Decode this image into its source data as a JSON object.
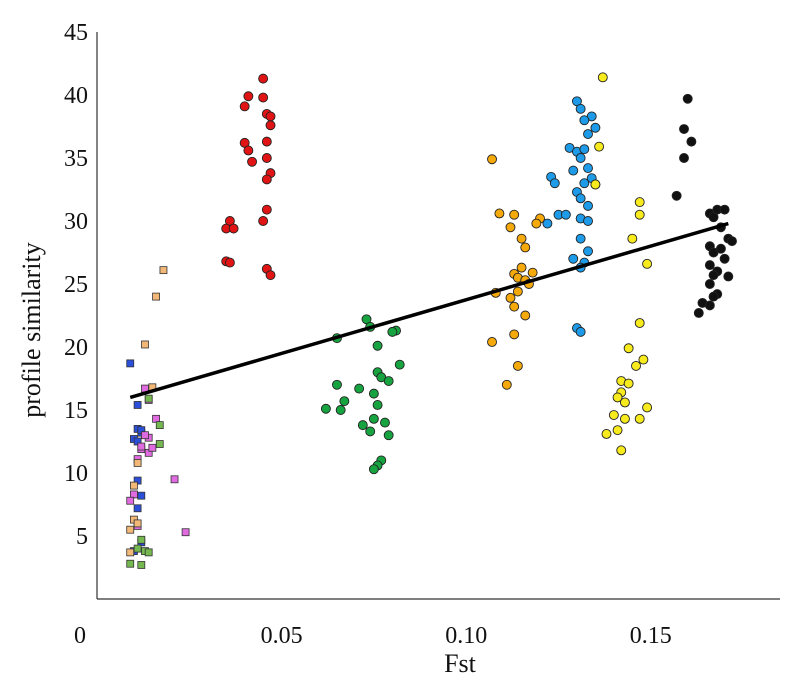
{
  "chart_data": {
    "type": "scatter",
    "title": "",
    "xlabel": "Fst",
    "ylabel": "profile similarity",
    "xlim": [
      0,
      0.185
    ],
    "ylim": [
      0,
      45
    ],
    "x_ticks": [
      "0",
      "0.05",
      "0.10",
      "0.15"
    ],
    "x_tick_values": [
      0,
      0.05,
      0.1,
      0.15
    ],
    "y_ticks": [
      "5",
      "10",
      "15",
      "20",
      "25",
      "30",
      "35",
      "40",
      "45"
    ],
    "y_tick_values": [
      5,
      10,
      15,
      20,
      25,
      30,
      35,
      40,
      45
    ],
    "grid": false,
    "legend": "none",
    "trendline": {
      "x": [
        0.009,
        0.171
      ],
      "y": [
        16.0,
        29.8
      ],
      "color": "#000000"
    },
    "series": [
      {
        "marker": "square",
        "color": "#2b4fd8",
        "points": [
          [
            0.009,
            18.7
          ],
          [
            0.011,
            15.4
          ],
          [
            0.011,
            13.5
          ],
          [
            0.012,
            13.2
          ],
          [
            0.01,
            12.7
          ],
          [
            0.011,
            9.4
          ],
          [
            0.012,
            8.2
          ],
          [
            0.011,
            7.2
          ],
          [
            0.012,
            4.5
          ],
          [
            0.01,
            3.8
          ],
          [
            0.012,
            13.4
          ],
          [
            0.011,
            12.5
          ]
        ]
      },
      {
        "marker": "square",
        "color": "#e06be0",
        "points": [
          [
            0.013,
            16.7
          ],
          [
            0.014,
            15.8
          ],
          [
            0.014,
            12.8
          ],
          [
            0.012,
            11.9
          ],
          [
            0.011,
            11.1
          ],
          [
            0.014,
            11.6
          ],
          [
            0.015,
            12.0
          ],
          [
            0.021,
            9.5
          ],
          [
            0.01,
            8.3
          ],
          [
            0.009,
            7.8
          ],
          [
            0.011,
            5.8
          ],
          [
            0.024,
            5.3
          ],
          [
            0.016,
            14.3
          ],
          [
            0.013,
            13.0
          ],
          [
            0.012,
            12.1
          ]
        ]
      },
      {
        "marker": "square",
        "color": "#f2b877",
        "points": [
          [
            0.018,
            26.1
          ],
          [
            0.016,
            24.0
          ],
          [
            0.013,
            20.2
          ],
          [
            0.015,
            16.8
          ],
          [
            0.011,
            10.8
          ],
          [
            0.01,
            9.0
          ],
          [
            0.01,
            6.3
          ],
          [
            0.011,
            6.0
          ],
          [
            0.009,
            5.5
          ],
          [
            0.009,
            3.7
          ]
        ]
      },
      {
        "marker": "square",
        "color": "#74b84f",
        "points": [
          [
            0.014,
            15.9
          ],
          [
            0.017,
            13.8
          ],
          [
            0.017,
            12.3
          ],
          [
            0.012,
            4.7
          ],
          [
            0.011,
            4.0
          ],
          [
            0.013,
            3.8
          ],
          [
            0.014,
            3.7
          ],
          [
            0.009,
            2.8
          ],
          [
            0.012,
            2.7
          ]
        ]
      },
      {
        "marker": "circle",
        "color": "#e01414",
        "points": [
          [
            0.045,
            41.3
          ],
          [
            0.041,
            39.9
          ],
          [
            0.045,
            39.8
          ],
          [
            0.04,
            39.1
          ],
          [
            0.046,
            38.5
          ],
          [
            0.047,
            38.3
          ],
          [
            0.047,
            37.6
          ],
          [
            0.04,
            36.2
          ],
          [
            0.046,
            36.3
          ],
          [
            0.041,
            35.6
          ],
          [
            0.046,
            35.0
          ],
          [
            0.042,
            34.7
          ],
          [
            0.047,
            33.8
          ],
          [
            0.046,
            33.3
          ],
          [
            0.046,
            30.9
          ],
          [
            0.045,
            30.0
          ],
          [
            0.036,
            30.0
          ],
          [
            0.035,
            29.4
          ],
          [
            0.037,
            29.4
          ],
          [
            0.035,
            26.8
          ],
          [
            0.036,
            26.7
          ],
          [
            0.046,
            26.2
          ],
          [
            0.047,
            25.7
          ]
        ]
      },
      {
        "marker": "circle",
        "color": "#17a340",
        "points": [
          [
            0.073,
            22.2
          ],
          [
            0.074,
            21.6
          ],
          [
            0.081,
            21.3
          ],
          [
            0.08,
            21.2
          ],
          [
            0.065,
            20.7
          ],
          [
            0.076,
            20.1
          ],
          [
            0.076,
            18.0
          ],
          [
            0.082,
            18.6
          ],
          [
            0.077,
            17.6
          ],
          [
            0.079,
            17.3
          ],
          [
            0.065,
            17.0
          ],
          [
            0.071,
            16.7
          ],
          [
            0.075,
            16.3
          ],
          [
            0.067,
            15.7
          ],
          [
            0.076,
            15.4
          ],
          [
            0.062,
            15.1
          ],
          [
            0.066,
            15.0
          ],
          [
            0.075,
            14.3
          ],
          [
            0.078,
            14.0
          ],
          [
            0.072,
            13.8
          ],
          [
            0.074,
            13.3
          ],
          [
            0.079,
            13.0
          ],
          [
            0.077,
            11.0
          ],
          [
            0.076,
            10.6
          ],
          [
            0.075,
            10.3
          ]
        ]
      },
      {
        "marker": "circle",
        "color": "#f5a90a",
        "points": [
          [
            0.107,
            34.9
          ],
          [
            0.109,
            30.6
          ],
          [
            0.113,
            30.5
          ],
          [
            0.112,
            29.5
          ],
          [
            0.12,
            30.2
          ],
          [
            0.119,
            29.8
          ],
          [
            0.115,
            28.6
          ],
          [
            0.116,
            27.9
          ],
          [
            0.115,
            26.3
          ],
          [
            0.118,
            25.9
          ],
          [
            0.113,
            25.8
          ],
          [
            0.114,
            25.5
          ],
          [
            0.116,
            25.3
          ],
          [
            0.117,
            25.0
          ],
          [
            0.114,
            24.4
          ],
          [
            0.108,
            24.3
          ],
          [
            0.112,
            23.9
          ],
          [
            0.113,
            23.2
          ],
          [
            0.116,
            22.5
          ],
          [
            0.113,
            21.0
          ],
          [
            0.107,
            20.4
          ],
          [
            0.114,
            18.5
          ],
          [
            0.111,
            17.0
          ]
        ]
      },
      {
        "marker": "circle",
        "color": "#1e9be8",
        "points": [
          [
            0.13,
            39.5
          ],
          [
            0.131,
            38.9
          ],
          [
            0.134,
            38.3
          ],
          [
            0.132,
            38.0
          ],
          [
            0.133,
            36.9
          ],
          [
            0.135,
            37.4
          ],
          [
            0.128,
            35.8
          ],
          [
            0.13,
            35.5
          ],
          [
            0.132,
            35.7
          ],
          [
            0.131,
            35.0
          ],
          [
            0.133,
            34.2
          ],
          [
            0.129,
            34.0
          ],
          [
            0.134,
            33.4
          ],
          [
            0.132,
            33.0
          ],
          [
            0.123,
            33.5
          ],
          [
            0.124,
            33.0
          ],
          [
            0.135,
            32.9
          ],
          [
            0.13,
            32.3
          ],
          [
            0.131,
            31.8
          ],
          [
            0.133,
            31.2
          ],
          [
            0.125,
            30.5
          ],
          [
            0.127,
            30.5
          ],
          [
            0.122,
            29.8
          ],
          [
            0.131,
            30.2
          ],
          [
            0.133,
            30.0
          ],
          [
            0.131,
            28.6
          ],
          [
            0.133,
            27.6
          ],
          [
            0.129,
            27.0
          ],
          [
            0.132,
            26.7
          ],
          [
            0.131,
            26.3
          ],
          [
            0.13,
            21.5
          ],
          [
            0.131,
            21.2
          ]
        ]
      },
      {
        "marker": "circle",
        "color": "#f7ea1d",
        "points": [
          [
            0.137,
            41.4
          ],
          [
            0.136,
            35.9
          ],
          [
            0.135,
            32.9
          ],
          [
            0.147,
            31.5
          ],
          [
            0.147,
            30.5
          ],
          [
            0.145,
            28.6
          ],
          [
            0.149,
            26.6
          ],
          [
            0.147,
            21.9
          ],
          [
            0.144,
            19.9
          ],
          [
            0.148,
            19.0
          ],
          [
            0.146,
            18.5
          ],
          [
            0.142,
            17.3
          ],
          [
            0.144,
            17.1
          ],
          [
            0.142,
            16.4
          ],
          [
            0.141,
            16.0
          ],
          [
            0.143,
            15.6
          ],
          [
            0.149,
            15.2
          ],
          [
            0.14,
            14.6
          ],
          [
            0.143,
            14.3
          ],
          [
            0.147,
            14.3
          ],
          [
            0.141,
            13.4
          ],
          [
            0.138,
            13.1
          ],
          [
            0.142,
            11.8
          ]
        ]
      },
      {
        "marker": "circle",
        "color": "#111111",
        "points": [
          [
            0.16,
            39.7
          ],
          [
            0.159,
            37.3
          ],
          [
            0.161,
            36.3
          ],
          [
            0.159,
            35.0
          ],
          [
            0.157,
            32.0
          ],
          [
            0.168,
            30.9
          ],
          [
            0.17,
            30.9
          ],
          [
            0.166,
            30.6
          ],
          [
            0.167,
            30.3
          ],
          [
            0.169,
            29.5
          ],
          [
            0.171,
            28.6
          ],
          [
            0.172,
            28.4
          ],
          [
            0.166,
            28.0
          ],
          [
            0.169,
            27.8
          ],
          [
            0.167,
            27.5
          ],
          [
            0.17,
            27.0
          ],
          [
            0.166,
            26.5
          ],
          [
            0.168,
            26.0
          ],
          [
            0.167,
            25.7
          ],
          [
            0.171,
            25.6
          ],
          [
            0.166,
            25.0
          ],
          [
            0.168,
            24.2
          ],
          [
            0.167,
            24.0
          ],
          [
            0.164,
            23.5
          ],
          [
            0.166,
            23.3
          ],
          [
            0.163,
            22.7
          ]
        ]
      }
    ]
  }
}
